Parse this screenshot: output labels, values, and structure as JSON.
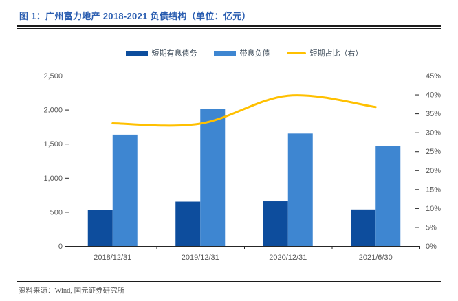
{
  "figure": {
    "title": "图 1：广州富力地产 2018-2021 负债结构（单位：亿元）",
    "source": "资料来源：Wind, 国元证券研究所"
  },
  "legend": [
    {
      "label": "短期有息债务",
      "marker": "box",
      "color": "#0D4D9D"
    },
    {
      "label": "带息负债",
      "marker": "box",
      "color": "#3E86D1"
    },
    {
      "label": "短期占比（右）",
      "marker": "line",
      "color": "#FFC000"
    }
  ],
  "chart_data": {
    "type": "bar+line combo",
    "categories": [
      "2018/12/31",
      "2019/12/31",
      "2020/12/31",
      "2021/6/30"
    ],
    "series": [
      {
        "name": "短期有息债务",
        "type": "bar",
        "axis": "left",
        "color": "#0D4D9D",
        "values": [
          529,
          650,
          655,
          536
        ]
      },
      {
        "name": "带息负债",
        "type": "bar",
        "axis": "left",
        "color": "#3E86D1",
        "values": [
          1634,
          2011,
          1650,
          1462
        ]
      },
      {
        "name": "短期占比（右）",
        "type": "line",
        "axis": "right",
        "color": "#FFC000",
        "values": [
          32.4,
          32.3,
          39.7,
          36.7
        ],
        "unit": "%"
      }
    ],
    "left_axis": {
      "min": 0,
      "max": 2500,
      "step": 500,
      "tick_labels": [
        "0",
        "500",
        "1,000",
        "1,500",
        "2,000",
        "2,500"
      ]
    },
    "right_axis": {
      "min": 0,
      "max": 45,
      "step": 5,
      "tick_labels": [
        "0%",
        "5%",
        "10%",
        "15%",
        "20%",
        "25%",
        "30%",
        "35%",
        "40%",
        "45%"
      ]
    },
    "grid": false,
    "legend_position": "top",
    "axis_color": "#262626",
    "tick_label_color": "#595959"
  }
}
